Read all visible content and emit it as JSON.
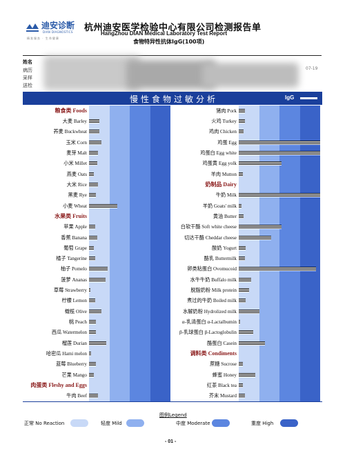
{
  "header": {
    "logo_cn": "迪安诊断",
    "logo_en": "DIAN DIAGNOSTICS",
    "logo_tagline": "精准服务 · 生命健康",
    "title_cn": "杭州迪安医学检验中心有限公司检测报告单",
    "title_en": "HangZhou DIAN Medical Laboratory Test Report",
    "subtitle": "食物特异性抗体IgG(100项)"
  },
  "info": {
    "name_label": "姓名",
    "dept_label": "病历",
    "sample_label": "采样",
    "send_label": "送检",
    "date_fragment": "07-19"
  },
  "chart_header": {
    "title": "慢性食物过敏分析",
    "series_label": "IgG"
  },
  "colors": {
    "header": "#1a3f9b",
    "normal": "#c8d9f7",
    "mild": "#8fb0ef",
    "moderate": "#5c86e0",
    "high": "#3a63c8",
    "category_text": "#8a1a1a"
  },
  "chart_data": {
    "type": "bar",
    "orientation": "horizontal",
    "scale_note": "bar length in level units; 0-1 Normal, 1-2 Mild, 2-3 Moderate, 3-4 High",
    "xlim": [
      0,
      4
    ],
    "left": [
      {
        "label": "粮食类 Foods",
        "category": true
      },
      {
        "label": "大麦 Barley",
        "value": 0.5
      },
      {
        "label": "荞麦 Buckwheat",
        "value": 0.5
      },
      {
        "label": "玉米 Corn",
        "value": 0.6
      },
      {
        "label": "麦芽 Malt",
        "value": 0.45
      },
      {
        "label": "小米 Millet",
        "value": 0.4
      },
      {
        "label": "燕麦 Oats",
        "value": 0.25
      },
      {
        "label": "大米 Rice",
        "value": 0.45
      },
      {
        "label": "黑麦 Rye",
        "value": 0.35
      },
      {
        "label": "小麦 Wheat",
        "value": 1.4
      },
      {
        "label": "水果类 Fruits",
        "category": true
      },
      {
        "label": "苹果 Apple",
        "value": 0.3
      },
      {
        "label": "香蕉 Banana",
        "value": 0.4
      },
      {
        "label": "葡萄 Grape",
        "value": 0.25
      },
      {
        "label": "橘子 Tangerine",
        "value": 0.3
      },
      {
        "label": "柚子 Pomelo",
        "value": 0.9
      },
      {
        "label": "菠萝 Ananas",
        "value": 0.8
      },
      {
        "label": "草莓 Strawberry",
        "value": 0.05
      },
      {
        "label": "柠檬 Lemon",
        "value": 0.3
      },
      {
        "label": "橄榄 Olive",
        "value": 0.6
      },
      {
        "label": "桃 Peach",
        "value": 0.35
      },
      {
        "label": "西瓜 Watermelon",
        "value": 0.35
      },
      {
        "label": "榴莲 Durian",
        "value": 0.85
      },
      {
        "label": "哈密瓜 Hami melon",
        "value": 0.1
      },
      {
        "label": "蓝莓 Blueberry",
        "value": 0.35
      },
      {
        "label": "芒果 Mango",
        "value": 0.25
      },
      {
        "label": "肉蛋类 Fleshy and Eggs",
        "category": true
      },
      {
        "label": "牛肉 Beef",
        "value": 0.45
      }
    ],
    "right": [
      {
        "label": "猪肉 Pork",
        "value": 0.3
      },
      {
        "label": "火鸡 Turkey",
        "value": 0.3
      },
      {
        "label": "鸡肉 Chicken",
        "value": 0.25
      },
      {
        "label": "鸡蛋 Egg",
        "value": 4.0
      },
      {
        "label": "鸡蛋白 Egg white",
        "value": 4.0
      },
      {
        "label": "鸡蛋黄 Egg yolk",
        "value": 2.1
      },
      {
        "label": "羊肉 Mutton",
        "value": 0.2
      },
      {
        "label": "奶制品 Dairy",
        "category": true
      },
      {
        "label": "牛奶 Milk",
        "value": 4.0
      },
      {
        "label": "羊奶 Goats' milk",
        "value": 0.15
      },
      {
        "label": "黄油 Butter",
        "value": 0.25
      },
      {
        "label": "白软干酪 Soft white cheese",
        "value": 2.1
      },
      {
        "label": "切达干酪 Cheddar cheese",
        "value": 1.6
      },
      {
        "label": "酸奶 Yogurt",
        "value": 0.35
      },
      {
        "label": "酪乳 Buttermilk",
        "value": 0.3
      },
      {
        "label": "卵类粘蛋白 Ovomucoid",
        "value": 3.8
      },
      {
        "label": "水牛牛奶 Buffalo milk",
        "value": 0.6
      },
      {
        "label": "脱脂奶粉 Milk protein",
        "value": 0.5
      },
      {
        "label": "煮过的牛奶 Boiled milk",
        "value": 0.35
      },
      {
        "label": "水解奶粉 Hydrolized milk",
        "value": 1.0
      },
      {
        "label": "α-乳清蛋白 α-Lactalbumin",
        "value": 0.05
      },
      {
        "label": "β-乳球蛋白 β-Lactoglobulin",
        "value": 0.7
      },
      {
        "label": "酪蛋白 Casein",
        "value": 1.3
      },
      {
        "label": "调料类 Condiments",
        "category": true
      },
      {
        "label": "蔗糖 Sucrose",
        "value": 0.2
      },
      {
        "label": "蜂蜜 Honey",
        "value": 0.8
      },
      {
        "label": "红茶 Black tea",
        "value": 0.2
      },
      {
        "label": "芥末 Mustard",
        "value": 0.3
      }
    ]
  },
  "legend": {
    "title": "图例Legend",
    "items": [
      {
        "label": "正常 No Reaction",
        "color": "#c8d9f7"
      },
      {
        "label": "轻度 Mild",
        "color": "#8fb0ef"
      },
      {
        "label": "中度 Moderate",
        "color": "#5c86e0"
      },
      {
        "label": "重度 High",
        "color": "#3a63c8"
      }
    ]
  },
  "footer": {
    "page_number": "- 01 -"
  }
}
